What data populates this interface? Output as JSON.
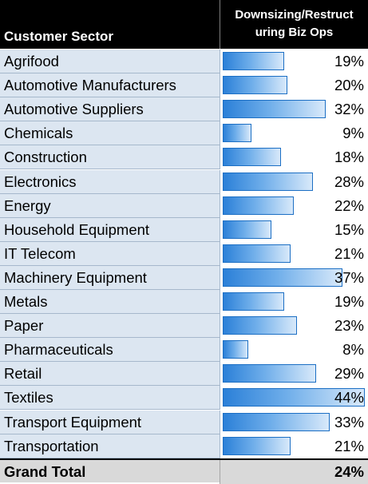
{
  "table": {
    "header_sector": "Customer Sector",
    "header_metric": "Downsizing/Restruct uring Biz Ops"
  },
  "chart_data": {
    "type": "table",
    "columns": [
      "Customer Sector",
      "Downsizing/Restructuring Biz Ops"
    ],
    "bar_max": 44,
    "rows": [
      {
        "label": "Agrifood",
        "value": 19,
        "display": "19%"
      },
      {
        "label": "Automotive Manufacturers",
        "value": 20,
        "display": "20%"
      },
      {
        "label": "Automotive Suppliers",
        "value": 32,
        "display": "32%"
      },
      {
        "label": "Chemicals",
        "value": 9,
        "display": "9%"
      },
      {
        "label": "Construction",
        "value": 18,
        "display": "18%"
      },
      {
        "label": "Electronics",
        "value": 28,
        "display": "28%"
      },
      {
        "label": "Energy",
        "value": 22,
        "display": "22%"
      },
      {
        "label": "Household Equipment",
        "value": 15,
        "display": "15%"
      },
      {
        "label": "IT Telecom",
        "value": 21,
        "display": "21%"
      },
      {
        "label": "Machinery Equipment",
        "value": 37,
        "display": "37%"
      },
      {
        "label": "Metals",
        "value": 19,
        "display": "19%"
      },
      {
        "label": "Paper",
        "value": 23,
        "display": "23%"
      },
      {
        "label": "Pharmaceuticals",
        "value": 8,
        "display": "8%"
      },
      {
        "label": "Retail",
        "value": 29,
        "display": "29%"
      },
      {
        "label": "Textiles",
        "value": 44,
        "display": "44%"
      },
      {
        "label": "Transport Equipment",
        "value": 33,
        "display": "33%"
      },
      {
        "label": "Transportation",
        "value": 21,
        "display": "21%"
      }
    ],
    "total": {
      "label": "Grand Total",
      "value": 24,
      "display": "24%"
    }
  }
}
